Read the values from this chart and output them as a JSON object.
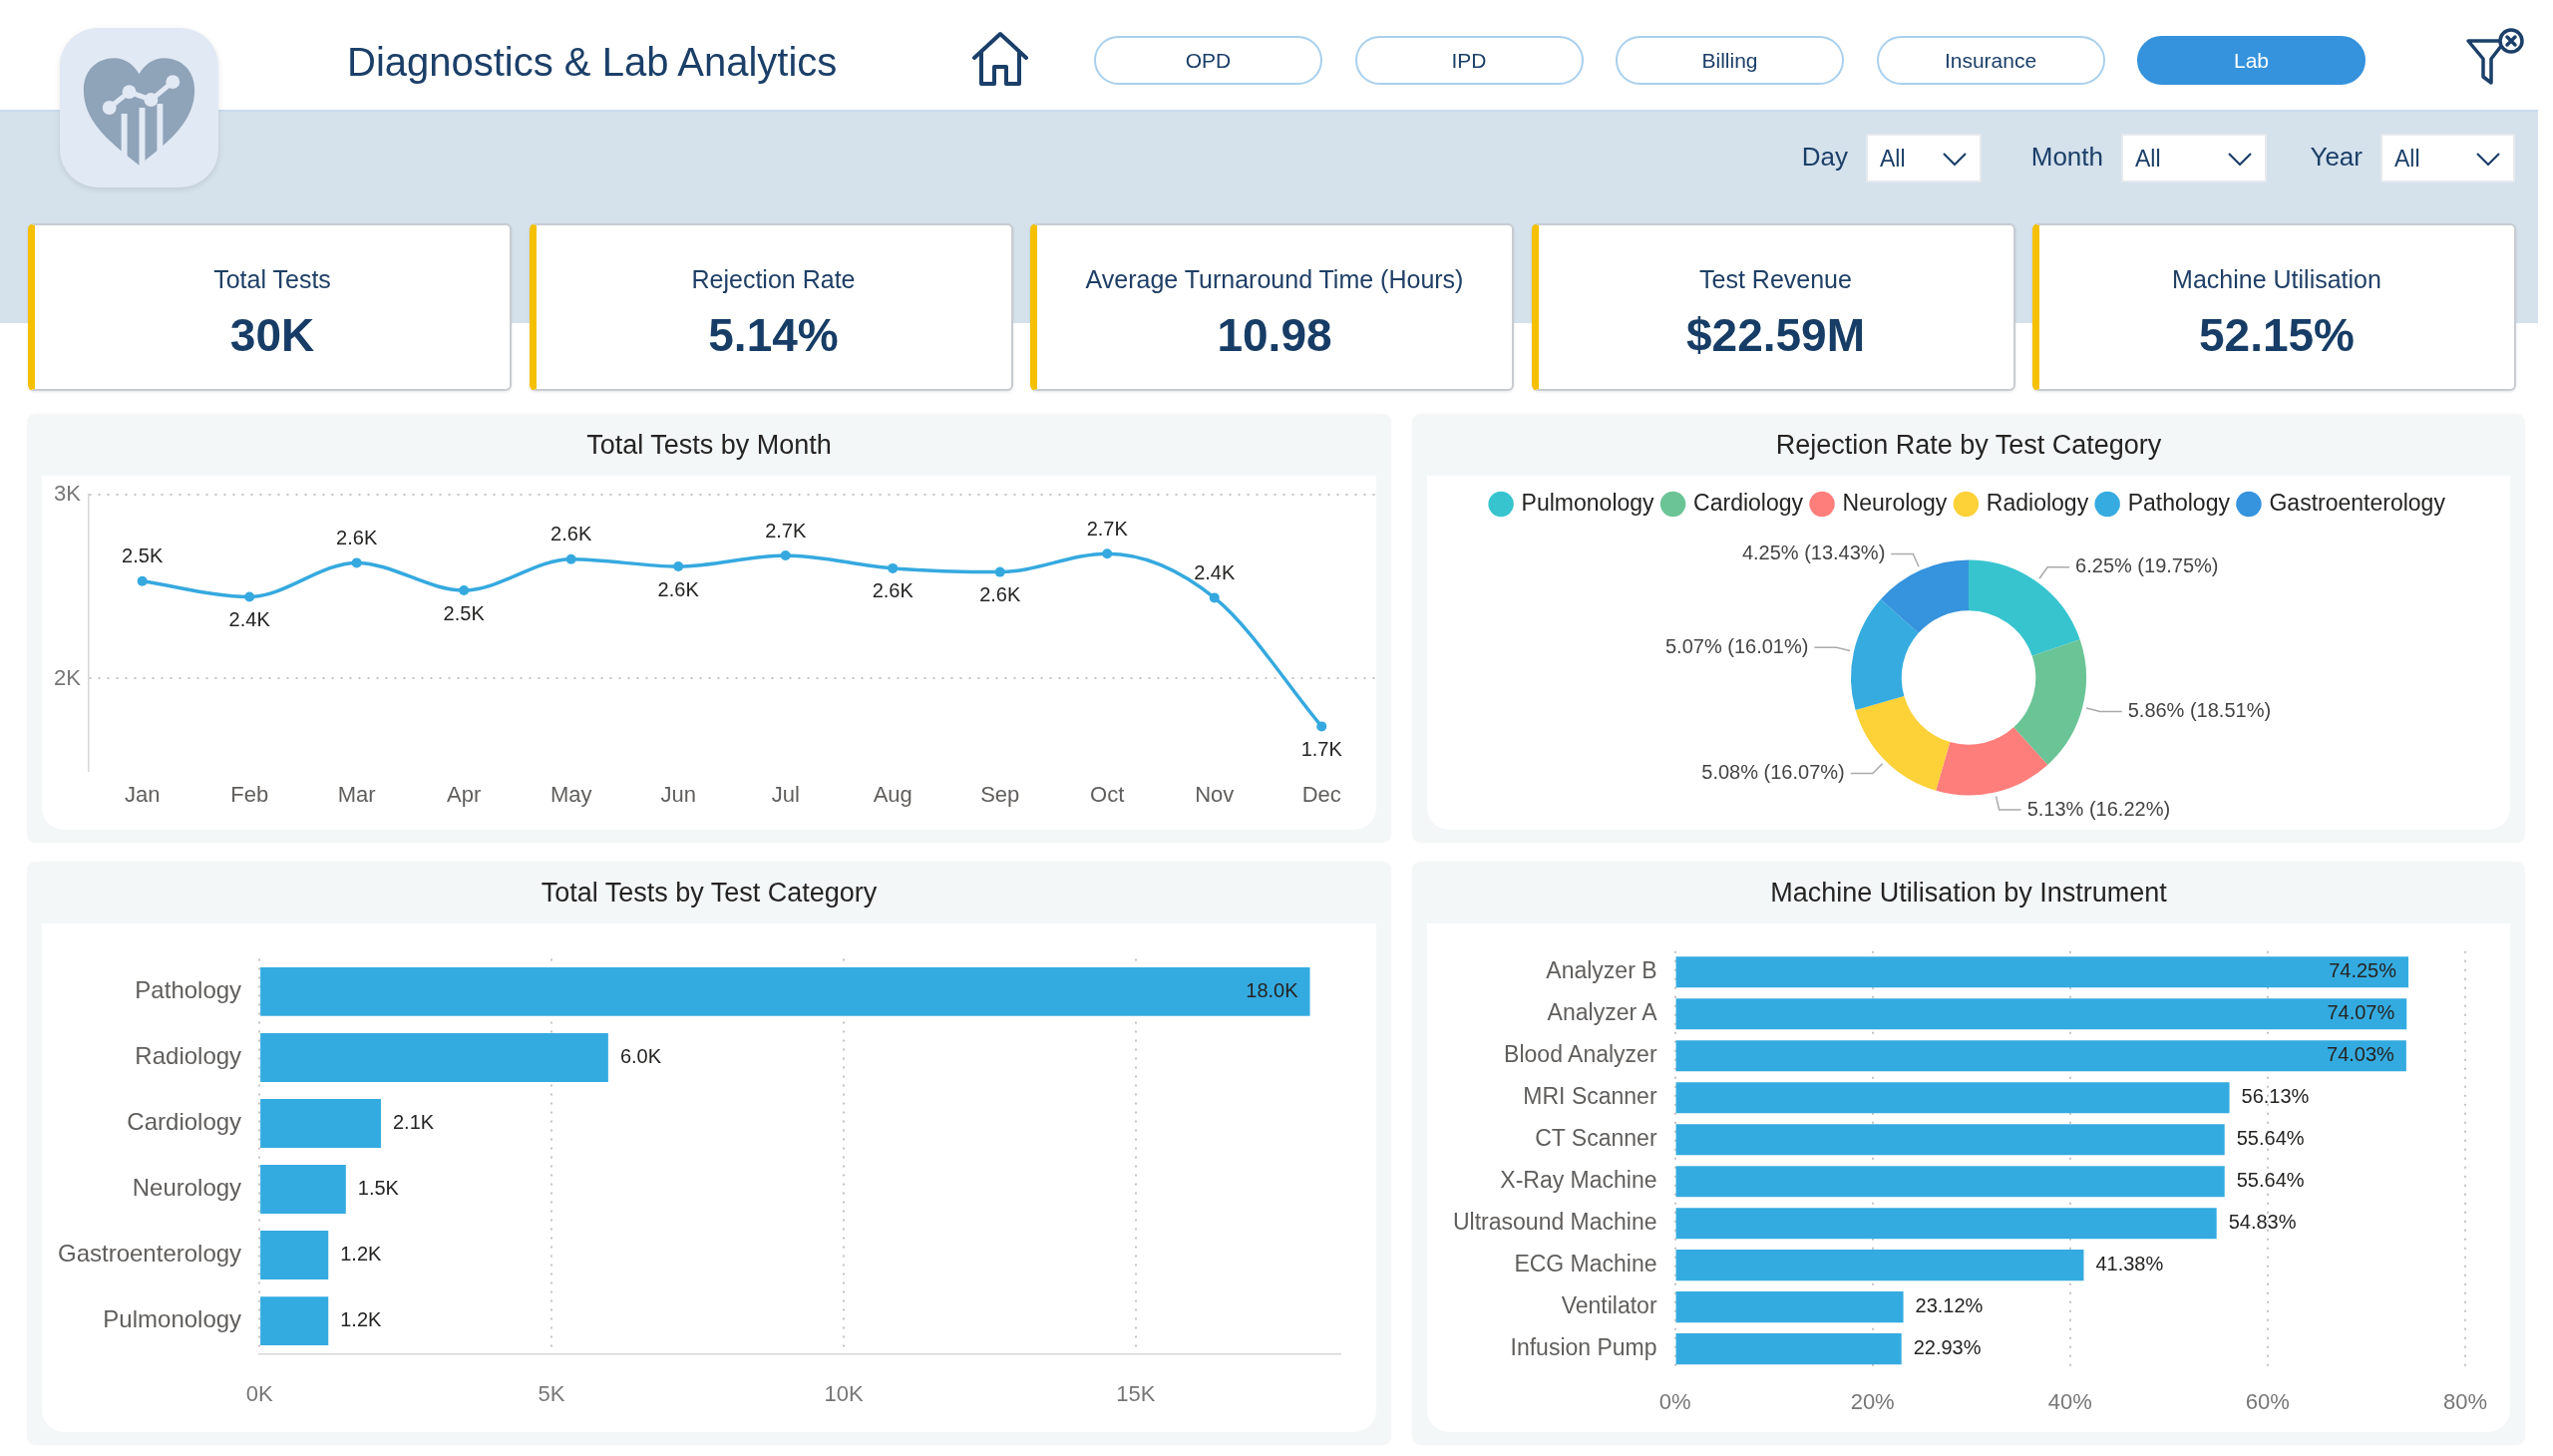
{
  "chart_data": [
    {
      "type": "other",
      "title": "Diagnostics & Lab Analytics",
      "annotations": [
        "OPD",
        "IPD",
        "Billing",
        "Insurance",
        "Lab",
        "Day",
        "All",
        "Month",
        "All",
        "Year",
        "All"
      ]
    },
    {
      "type": "other",
      "title": "Total Tests",
      "annotations": [
        "30K"
      ]
    },
    {
      "type": "other",
      "title": "Rejection Rate",
      "annotations": [
        "5.14%"
      ]
    },
    {
      "type": "other",
      "title": "Average Turnaround Time (Hours)",
      "annotations": [
        "10.98"
      ]
    },
    {
      "type": "other",
      "title": "Test Revenue",
      "annotations": [
        "$22.59M"
      ]
    },
    {
      "type": "other",
      "title": "Machine Utilisation",
      "annotations": [
        "52.15%"
      ]
    },
    {
      "type": "line",
      "title": "Total Tests by Month",
      "categories": [
        "Jan",
        "Feb",
        "Mar",
        "Apr",
        "May",
        "Jun",
        "Jul",
        "Aug",
        "Sep",
        "Oct",
        "Nov",
        "Dec"
      ],
      "values": [
        2530,
        2445,
        2630,
        2480,
        2650,
        2610,
        2670,
        2600,
        2580,
        2680,
        2440,
        1740
      ],
      "value_labels": [
        "2.5K",
        "2.4K",
        "2.6K",
        "2.5K",
        "2.6K",
        "2.6K",
        "2.7K",
        "2.6K",
        "2.6K",
        "2.7K",
        "2.4K",
        "1.7K"
      ],
      "color": "#35a9df",
      "ylim": [
        1500,
        3000
      ],
      "yticks": [
        {
          "value": 2000,
          "label": "2K"
        },
        {
          "value": 3000,
          "label": "3K"
        }
      ],
      "grid": "y",
      "marker": "circle"
    },
    {
      "type": "donut",
      "title": "Rejection Rate by Test Category",
      "categories": [
        "Pulmonology",
        "Cardiology",
        "Neurology",
        "Radiology",
        "Pathology",
        "Gastroenterology"
      ],
      "values": [
        6.25,
        5.86,
        5.13,
        5.08,
        5.07,
        4.25
      ],
      "colors": [
        "#37c4cf",
        "#6bc496",
        "#fd7e7a",
        "#fdd138",
        "#35abe0",
        "#3693dd"
      ],
      "value_labels": [
        "6.25% (19.75%)",
        "5.86% (18.51%)",
        "5.13% (16.22%)",
        "5.08% (16.07%)",
        "5.07% (16.01%)",
        "4.25% (13.43%)"
      ],
      "legend": "top"
    },
    {
      "type": "bar",
      "orientation": "horizontal",
      "title": "Total Tests by Test Category",
      "categories": [
        "Pathology",
        "Radiology",
        "Cardiology",
        "Neurology",
        "Gastroenterology",
        "Pulmonology"
      ],
      "values": [
        17980,
        5970,
        2080,
        1480,
        1180,
        1180
      ],
      "value_labels": [
        "18.0K",
        "6.0K",
        "2.1K",
        "1.5K",
        "1.2K",
        "1.2K"
      ],
      "color": "#34abe0",
      "xlim": [
        0,
        18500
      ],
      "xticks": [
        {
          "value": 0,
          "label": "0K"
        },
        {
          "value": 5000,
          "label": "5K"
        },
        {
          "value": 10000,
          "label": "10K"
        },
        {
          "value": 15000,
          "label": "15K"
        }
      ],
      "grid": "x"
    },
    {
      "type": "bar",
      "orientation": "horizontal",
      "title": "Machine Utilisation by Instrument",
      "categories": [
        "Analyzer B",
        "Analyzer A",
        "Blood Analyzer",
        "MRI Scanner",
        "CT Scanner",
        "X-Ray Machine",
        "Ultrasound Machine",
        "ECG Machine",
        "Ventilator",
        "Infusion Pump"
      ],
      "values": [
        74.25,
        74.07,
        74.03,
        56.13,
        55.64,
        55.64,
        54.83,
        41.38,
        23.12,
        22.93
      ],
      "value_labels": [
        "74.25%",
        "74.07%",
        "74.03%",
        "56.13%",
        "55.64%",
        "55.64%",
        "54.83%",
        "41.38%",
        "23.12%",
        "22.93%"
      ],
      "color": "#34abe0",
      "xlim": [
        0,
        80
      ],
      "xticks": [
        {
          "value": 0,
          "label": "0%"
        },
        {
          "value": 20,
          "label": "20%"
        },
        {
          "value": 40,
          "label": "40%"
        },
        {
          "value": 60,
          "label": "60%"
        },
        {
          "value": 80,
          "label": "80%"
        }
      ],
      "grid": "x"
    }
  ]
}
